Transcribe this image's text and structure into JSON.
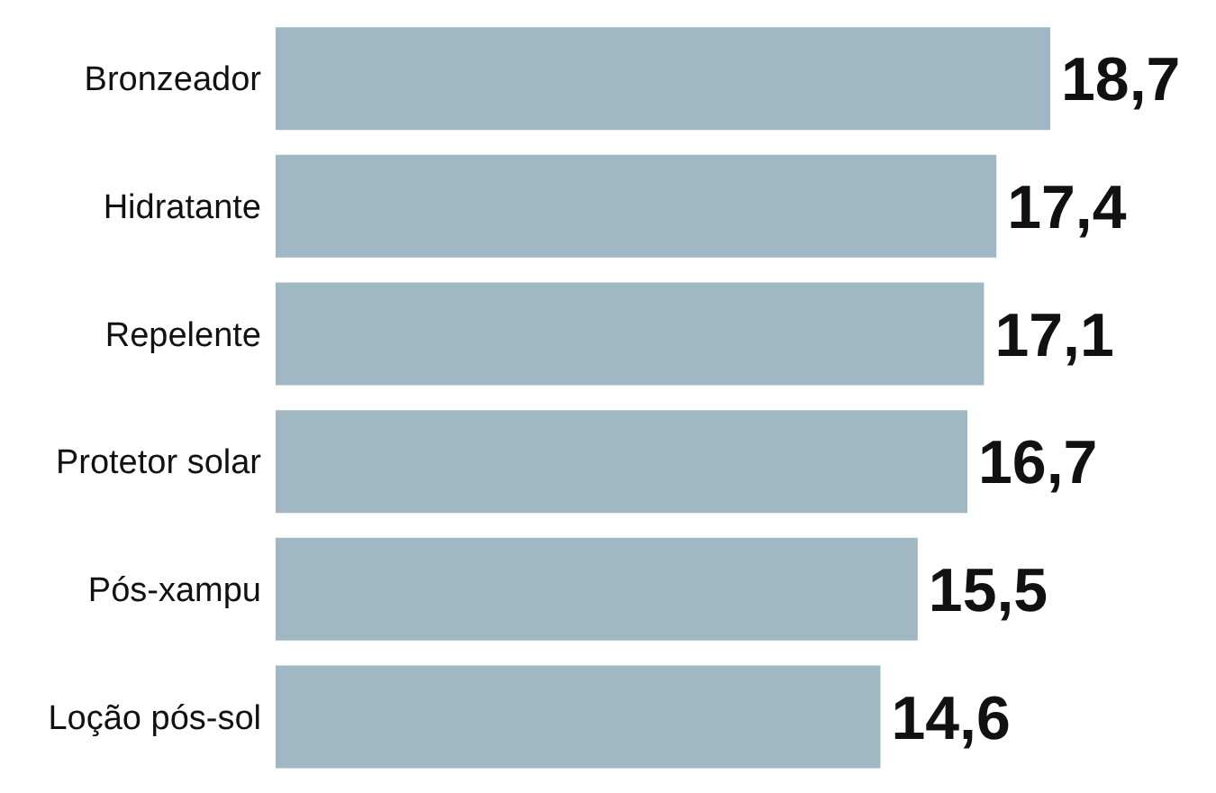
{
  "chart_data": {
    "type": "bar",
    "orientation": "horizontal",
    "categories": [
      "Bronzeador",
      "Hidratante",
      "Repelente",
      "Protetor solar",
      "Pós-xampu",
      "Loção pós-sol"
    ],
    "values": [
      18.7,
      17.4,
      17.1,
      16.7,
      15.5,
      14.6
    ],
    "value_labels": [
      "18,7",
      "17,4",
      "17,1",
      "16,7",
      "15,5",
      "14,6"
    ],
    "color": "#9fb8c4",
    "grid": false,
    "legend": false
  }
}
